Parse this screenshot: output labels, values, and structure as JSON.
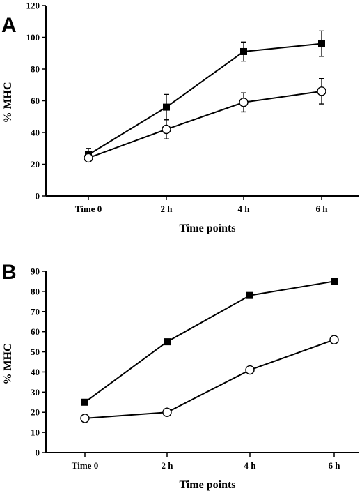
{
  "chart_data": [
    {
      "panel": "A",
      "type": "line",
      "xlabel": "Time points",
      "ylabel": "% MHC",
      "categories": [
        "Time 0",
        "2 h",
        "4 h",
        "6 h"
      ],
      "ylim": [
        0,
        120
      ],
      "yticks": [
        0,
        20,
        40,
        60,
        80,
        100,
        120
      ],
      "series": [
        {
          "marker": "filled-square",
          "values": [
            26,
            56,
            91,
            96
          ],
          "errors": [
            4,
            8,
            6,
            8
          ]
        },
        {
          "marker": "open-circle",
          "values": [
            24,
            42,
            59,
            66
          ],
          "errors": [
            2,
            6,
            6,
            8
          ]
        }
      ]
    },
    {
      "panel": "B",
      "type": "line",
      "xlabel": "Time points",
      "ylabel": "% MHC",
      "categories": [
        "Time 0",
        "2 h",
        "4 h",
        "6 h"
      ],
      "ylim": [
        0,
        90
      ],
      "yticks": [
        0,
        10,
        20,
        30,
        40,
        50,
        60,
        70,
        80,
        90
      ],
      "series": [
        {
          "marker": "filled-square",
          "values": [
            25,
            55,
            78,
            85
          ]
        },
        {
          "marker": "open-circle",
          "values": [
            17,
            20,
            41,
            56
          ]
        }
      ]
    }
  ]
}
